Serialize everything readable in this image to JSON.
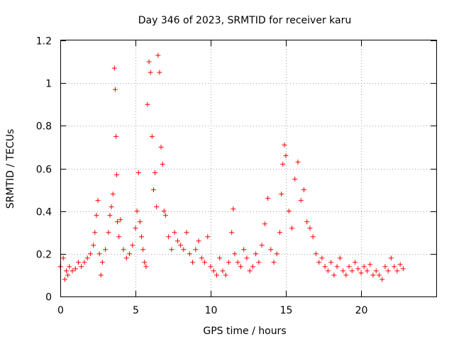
{
  "chart_data": {
    "type": "scatter",
    "title": "Day 346 of 2023, SRMTID for receiver karu",
    "xlabel": "GPS time / hours",
    "ylabel": "SRMTID / TECUs",
    "xlim": [
      0,
      25
    ],
    "ylim": [
      0,
      1.2
    ],
    "xticks": [
      0,
      5,
      10,
      15,
      20
    ],
    "xtick_labels": [
      "0",
      "5",
      "10",
      "15",
      "20"
    ],
    "yticks": [
      0,
      0.2,
      0.4,
      0.6,
      0.8,
      1.0,
      1.2
    ],
    "ytick_labels": [
      "0",
      "0.2",
      "0.4",
      "0.6",
      "0.8",
      "1",
      "1.2"
    ],
    "grid": true,
    "marker": "plus",
    "point_color": "#ff0000",
    "series": [
      {
        "name": "SRMTID",
        "x": [
          0.0,
          0.2,
          0.3,
          0.4,
          0.5,
          0.6,
          0.8,
          1.0,
          1.2,
          1.4,
          1.6,
          1.8,
          2.0,
          2.2,
          2.3,
          2.4,
          2.5,
          2.6,
          2.7,
          2.8,
          3.0,
          3.2,
          3.3,
          3.4,
          3.5,
          3.6,
          3.65,
          3.7,
          3.75,
          3.8,
          3.9,
          4.0,
          4.2,
          4.4,
          4.6,
          4.8,
          5.0,
          5.1,
          5.2,
          5.3,
          5.4,
          5.5,
          5.6,
          5.7,
          5.8,
          5.9,
          6.0,
          6.1,
          6.2,
          6.3,
          6.4,
          6.5,
          6.6,
          6.7,
          6.8,
          6.9,
          7.0,
          7.2,
          7.4,
          7.6,
          7.8,
          8.0,
          8.2,
          8.4,
          8.6,
          8.8,
          9.0,
          9.2,
          9.4,
          9.6,
          9.8,
          10.0,
          10.2,
          10.4,
          10.6,
          10.8,
          11.0,
          11.2,
          11.4,
          11.5,
          11.6,
          11.8,
          12.0,
          12.2,
          12.4,
          12.6,
          12.8,
          13.0,
          13.2,
          13.4,
          13.6,
          13.8,
          14.0,
          14.2,
          14.4,
          14.6,
          14.7,
          14.8,
          14.9,
          15.0,
          15.2,
          15.4,
          15.6,
          15.8,
          16.0,
          16.2,
          16.4,
          16.6,
          16.8,
          17.0,
          17.2,
          17.4,
          17.6,
          17.8,
          18.0,
          18.2,
          18.4,
          18.6,
          18.8,
          19.0,
          19.2,
          19.4,
          19.6,
          19.8,
          20.0,
          20.2,
          20.4,
          20.6,
          20.8,
          21.0,
          21.2,
          21.4,
          21.6,
          21.8,
          22.0,
          22.2,
          22.4,
          22.6,
          22.8
        ],
        "y": [
          0.14,
          0.18,
          0.08,
          0.12,
          0.1,
          0.14,
          0.12,
          0.13,
          0.16,
          0.14,
          0.16,
          0.18,
          0.2,
          0.24,
          0.3,
          0.38,
          0.45,
          0.2,
          0.1,
          0.16,
          0.22,
          0.3,
          0.38,
          0.42,
          0.48,
          1.07,
          0.97,
          0.75,
          0.57,
          0.35,
          0.28,
          0.36,
          0.22,
          0.18,
          0.2,
          0.24,
          0.32,
          0.4,
          0.58,
          0.35,
          0.28,
          0.22,
          0.16,
          0.14,
          0.9,
          1.1,
          1.05,
          0.75,
          0.5,
          0.58,
          0.42,
          1.13,
          1.05,
          0.7,
          0.62,
          0.4,
          0.38,
          0.28,
          0.22,
          0.3,
          0.26,
          0.24,
          0.22,
          0.3,
          0.2,
          0.16,
          0.22,
          0.26,
          0.18,
          0.16,
          0.28,
          0.14,
          0.12,
          0.1,
          0.18,
          0.12,
          0.1,
          0.16,
          0.3,
          0.41,
          0.2,
          0.16,
          0.14,
          0.22,
          0.18,
          0.12,
          0.14,
          0.2,
          0.16,
          0.24,
          0.34,
          0.46,
          0.22,
          0.16,
          0.2,
          0.3,
          0.48,
          0.62,
          0.71,
          0.66,
          0.4,
          0.32,
          0.55,
          0.63,
          0.45,
          0.5,
          0.35,
          0.32,
          0.28,
          0.2,
          0.16,
          0.18,
          0.14,
          0.12,
          0.16,
          0.1,
          0.14,
          0.18,
          0.12,
          0.1,
          0.14,
          0.12,
          0.16,
          0.13,
          0.11,
          0.14,
          0.12,
          0.15,
          0.1,
          0.12,
          0.1,
          0.08,
          0.14,
          0.12,
          0.18,
          0.14,
          0.12,
          0.15,
          0.13
        ]
      }
    ]
  }
}
